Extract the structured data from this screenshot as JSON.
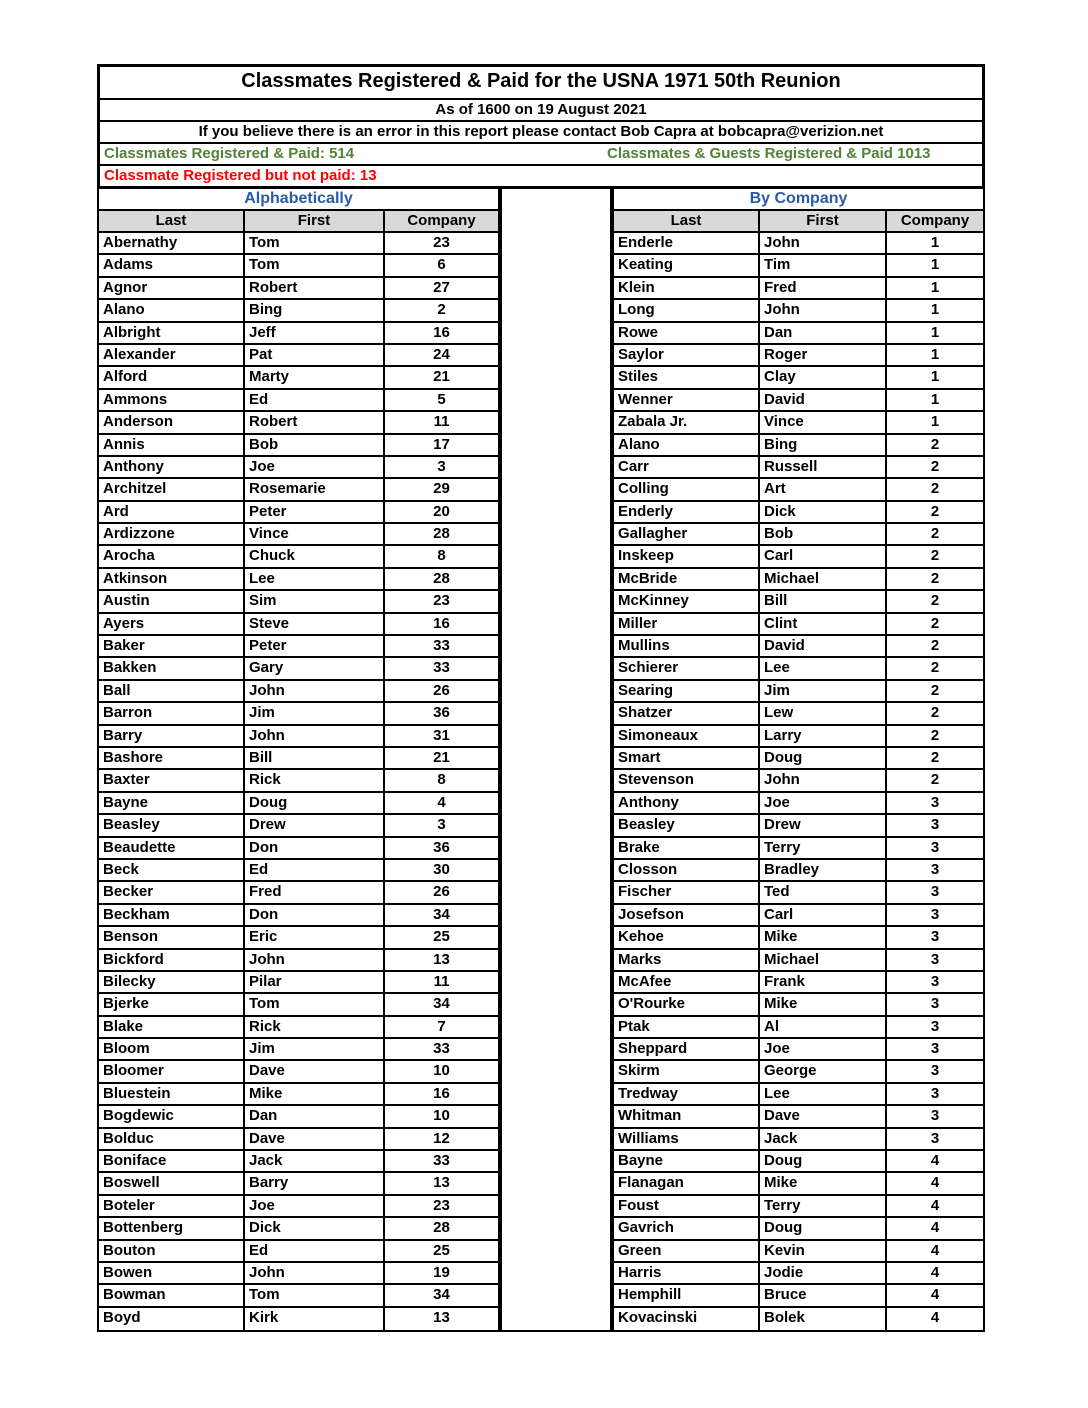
{
  "header": {
    "title": "Classmates Registered & Paid for the USNA 1971 50th Reunion",
    "as_of": "As of 1600 on 19 August 2021",
    "contact": "If you believe there is an error in this report please contact Bob Capra at bobcapra@verizion.net"
  },
  "stats": {
    "classmates_paid": "Classmates Registered & Paid: 514",
    "guests_paid": "Classmates & Guests Registered & Paid  1013",
    "not_paid": "Classmate Registered but not paid: 13"
  },
  "colors": {
    "green": "#538135",
    "red": "#FF0000",
    "blue": "#2B5AA7",
    "header_gray": "#D9D9D9"
  },
  "tables": [
    {
      "title": "Alphabetically",
      "columns": [
        "Last",
        "First",
        "Company"
      ],
      "rows": [
        [
          "Abernathy",
          "Tom",
          "23"
        ],
        [
          "Adams",
          "Tom",
          "6"
        ],
        [
          "Agnor",
          "Robert",
          "27"
        ],
        [
          "Alano",
          "Bing",
          "2"
        ],
        [
          "Albright",
          "Jeff",
          "16"
        ],
        [
          "Alexander",
          "Pat",
          "24"
        ],
        [
          "Alford",
          "Marty",
          "21"
        ],
        [
          "Ammons",
          "Ed",
          "5"
        ],
        [
          "Anderson",
          "Robert",
          "11"
        ],
        [
          "Annis",
          "Bob",
          "17"
        ],
        [
          "Anthony",
          "Joe",
          "3"
        ],
        [
          "Architzel",
          "Rosemarie",
          "29"
        ],
        [
          "Ard",
          "Peter",
          "20"
        ],
        [
          "Ardizzone",
          "Vince",
          "28"
        ],
        [
          "Arocha",
          "Chuck",
          "8"
        ],
        [
          "Atkinson",
          "Lee",
          "28"
        ],
        [
          "Austin",
          "Sim",
          "23"
        ],
        [
          "Ayers",
          "Steve",
          "16"
        ],
        [
          "Baker",
          "Peter",
          "33"
        ],
        [
          "Bakken",
          "Gary",
          "33"
        ],
        [
          "Ball",
          "John",
          "26"
        ],
        [
          "Barron",
          "Jim",
          "36"
        ],
        [
          "Barry",
          "John",
          "31"
        ],
        [
          "Bashore",
          "Bill",
          "21"
        ],
        [
          "Baxter",
          "Rick",
          "8"
        ],
        [
          "Bayne",
          "Doug",
          "4"
        ],
        [
          "Beasley",
          "Drew",
          "3"
        ],
        [
          "Beaudette",
          "Don",
          "36"
        ],
        [
          "Beck",
          "Ed",
          "30"
        ],
        [
          "Becker",
          "Fred",
          "26"
        ],
        [
          "Beckham",
          "Don",
          "34"
        ],
        [
          "Benson",
          "Eric",
          "25"
        ],
        [
          "Bickford",
          "John",
          "13"
        ],
        [
          "Bilecky",
          "Pilar",
          "11"
        ],
        [
          "Bjerke",
          "Tom",
          "34"
        ],
        [
          "Blake",
          "Rick",
          "7"
        ],
        [
          "Bloom",
          "Jim",
          "33"
        ],
        [
          "Bloomer",
          "Dave",
          "10"
        ],
        [
          "Bluestein",
          "Mike",
          "16"
        ],
        [
          "Bogdewic",
          "Dan",
          "10"
        ],
        [
          "Bolduc",
          "Dave",
          "12"
        ],
        [
          "Boniface",
          "Jack",
          "33"
        ],
        [
          "Boswell",
          "Barry",
          "13"
        ],
        [
          "Boteler",
          "Joe",
          "23"
        ],
        [
          "Bottenberg",
          "Dick",
          "28"
        ],
        [
          "Bouton",
          "Ed",
          "25"
        ],
        [
          "Bowen",
          "John",
          "19"
        ],
        [
          "Bowman",
          "Tom",
          "34"
        ],
        [
          "Boyd",
          "Kirk",
          "13"
        ]
      ]
    },
    {
      "title": "By Company",
      "columns": [
        "Last",
        "First",
        "Company"
      ],
      "rows": [
        [
          "Enderle",
          "John",
          "1"
        ],
        [
          "Keating",
          "Tim",
          "1"
        ],
        [
          "Klein",
          "Fred",
          "1"
        ],
        [
          "Long",
          "John",
          "1"
        ],
        [
          "Rowe",
          "Dan",
          "1"
        ],
        [
          "Saylor",
          "Roger",
          "1"
        ],
        [
          "Stiles",
          "Clay",
          "1"
        ],
        [
          "Wenner",
          "David",
          "1"
        ],
        [
          "Zabala Jr.",
          "Vince",
          "1"
        ],
        [
          "Alano",
          "Bing",
          "2"
        ],
        [
          "Carr",
          "Russell",
          "2"
        ],
        [
          "Colling",
          "Art",
          "2"
        ],
        [
          "Enderly",
          "Dick",
          "2"
        ],
        [
          "Gallagher",
          "Bob",
          "2"
        ],
        [
          "Inskeep",
          "Carl",
          "2"
        ],
        [
          "McBride",
          "Michael",
          "2"
        ],
        [
          "McKinney",
          "Bill",
          "2"
        ],
        [
          "Miller",
          "Clint",
          "2"
        ],
        [
          "Mullins",
          "David",
          "2"
        ],
        [
          "Schierer",
          "Lee",
          "2"
        ],
        [
          "Searing",
          "Jim",
          "2"
        ],
        [
          "Shatzer",
          "Lew",
          "2"
        ],
        [
          "Simoneaux",
          "Larry",
          "2"
        ],
        [
          "Smart",
          "Doug",
          "2"
        ],
        [
          "Stevenson",
          "John",
          "2"
        ],
        [
          "Anthony",
          "Joe",
          "3"
        ],
        [
          "Beasley",
          "Drew",
          "3"
        ],
        [
          "Brake",
          "Terry",
          "3"
        ],
        [
          "Closson",
          "Bradley",
          "3"
        ],
        [
          "Fischer",
          "Ted",
          "3"
        ],
        [
          "Josefson",
          "Carl",
          "3"
        ],
        [
          "Kehoe",
          "Mike",
          "3"
        ],
        [
          "Marks",
          "Michael",
          "3"
        ],
        [
          "McAfee",
          "Frank",
          "3"
        ],
        [
          "O'Rourke",
          "Mike",
          "3"
        ],
        [
          "Ptak",
          "Al",
          "3"
        ],
        [
          "Sheppard",
          "Joe",
          "3"
        ],
        [
          "Skirm",
          "George",
          "3"
        ],
        [
          "Tredway",
          "Lee",
          "3"
        ],
        [
          "Whitman",
          "Dave",
          "3"
        ],
        [
          "Williams",
          "Jack",
          "3"
        ],
        [
          "Bayne",
          "Doug",
          "4"
        ],
        [
          "Flanagan",
          "Mike",
          "4"
        ],
        [
          "Foust",
          "Terry",
          "4"
        ],
        [
          "Gavrich",
          "Doug",
          "4"
        ],
        [
          "Green",
          "Kevin",
          "4"
        ],
        [
          "Harris",
          "Jodie",
          "4"
        ],
        [
          "Hemphill",
          "Bruce",
          "4"
        ],
        [
          "Kovacinski",
          "Bolek",
          "4"
        ]
      ]
    }
  ]
}
